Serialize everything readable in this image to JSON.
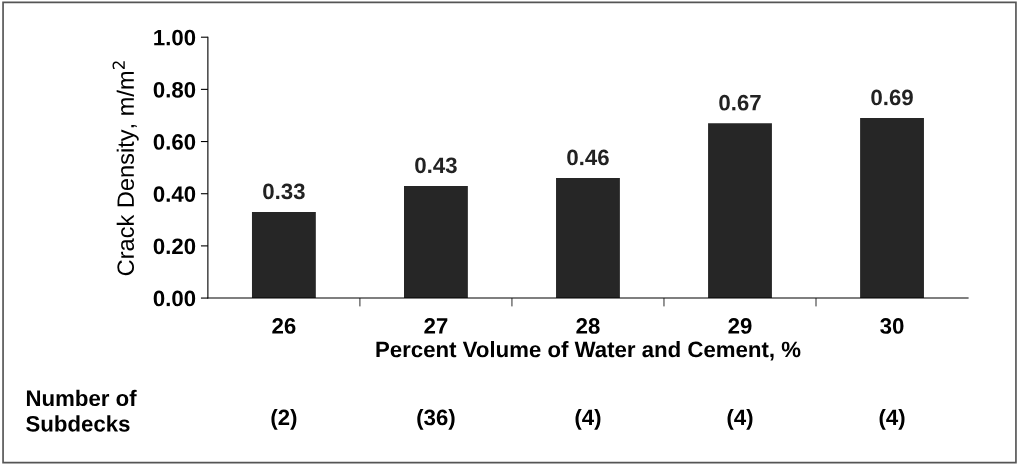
{
  "chart_data": {
    "type": "bar",
    "categories": [
      "26",
      "27",
      "28",
      "29",
      "30"
    ],
    "values": [
      0.33,
      0.43,
      0.46,
      0.67,
      0.69
    ],
    "color": "#262626",
    "ylim": [
      0,
      1
    ],
    "yticks": [
      {
        "value": 0,
        "label": "0.00"
      },
      {
        "value": 0.2,
        "label": "0.20"
      },
      {
        "value": 0.4,
        "label": "0.40"
      },
      {
        "value": 0.6,
        "label": "0.60"
      },
      {
        "value": 0.8,
        "label": "0.80"
      },
      {
        "value": 1,
        "label": "1.00"
      }
    ],
    "ylabel": "Crack Density, m/m$^{2}$",
    "xlabel": "Percent Volume of Water and Cement, %",
    "data_labels": true,
    "grid": false,
    "legend": false,
    "annotations": [
      "Number of\nSubdecks",
      "(2)",
      "(36)",
      "(4)",
      "(4)",
      "(4)"
    ]
  }
}
